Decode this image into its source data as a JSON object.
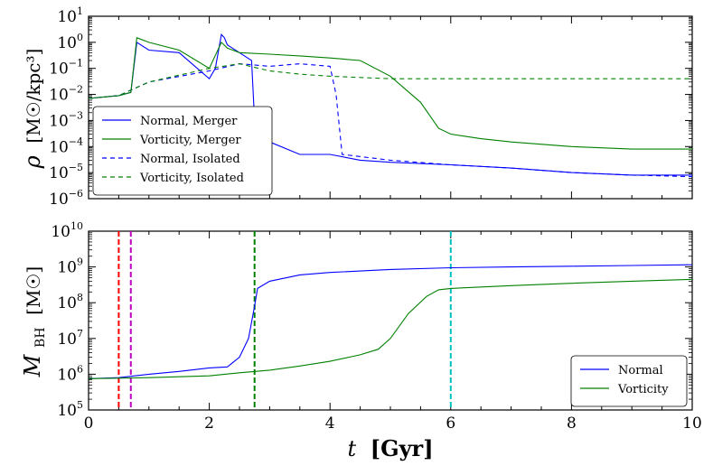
{
  "chart_data": [
    {
      "type": "line",
      "panel": "top",
      "ylabel_symbol": "ρ",
      "ylabel_units": "[M☉/kpc³]",
      "yscale": "log",
      "ylim": [
        1e-06,
        10
      ],
      "xlim": [
        0,
        10
      ],
      "y_ticks": [
        {
          "base": "10",
          "exp": "1",
          "value": 10
        },
        {
          "base": "10",
          "exp": "0",
          "value": 1
        },
        {
          "base": "10",
          "exp": "−1",
          "value": 0.1
        },
        {
          "base": "10",
          "exp": "−2",
          "value": 0.01
        },
        {
          "base": "10",
          "exp": "−3",
          "value": 0.001
        },
        {
          "base": "10",
          "exp": "−4",
          "value": 0.0001
        },
        {
          "base": "10",
          "exp": "−5",
          "value": 1e-05
        },
        {
          "base": "10",
          "exp": "−6",
          "value": 1e-06
        }
      ],
      "series": [
        {
          "name": "Normal, Merger",
          "color": "#0000ff",
          "style": "solid",
          "x": [
            0,
            0.5,
            0.7,
            0.8,
            1.0,
            1.5,
            2.0,
            2.1,
            2.2,
            2.25,
            2.3,
            2.5,
            2.7,
            2.75,
            2.8,
            3.0,
            3.5,
            4.0,
            4.5,
            5.0,
            6.0,
            7.0,
            8.0,
            9.0,
            10.0
          ],
          "y": [
            0.007,
            0.009,
            0.012,
            1.0,
            0.5,
            0.4,
            0.04,
            0.1,
            2.0,
            1.5,
            0.8,
            0.4,
            0.2,
            0.001,
            0.0002,
            0.00015,
            5e-05,
            5e-05,
            3e-05,
            2.5e-05,
            2e-05,
            1.5e-05,
            1e-05,
            8e-06,
            8e-06
          ]
        },
        {
          "name": "Vorticity, Merger",
          "color": "#008000",
          "style": "solid",
          "x": [
            0,
            0.5,
            0.7,
            0.8,
            1.0,
            1.5,
            2.0,
            2.2,
            2.3,
            2.5,
            3.0,
            3.5,
            4.0,
            4.5,
            5.0,
            5.5,
            5.8,
            6.0,
            6.5,
            7.0,
            8.0,
            9.0,
            10.0
          ],
          "y": [
            0.007,
            0.009,
            0.012,
            1.5,
            1.0,
            0.5,
            0.1,
            1.0,
            0.6,
            0.4,
            0.35,
            0.3,
            0.25,
            0.2,
            0.05,
            0.005,
            0.0005,
            0.0003,
            0.0002,
            0.00015,
            0.0001,
            8e-05,
            8e-05
          ]
        },
        {
          "name": "Normal, Isolated",
          "color": "#0000ff",
          "style": "dashed",
          "x": [
            0,
            0.5,
            1.0,
            2.0,
            2.5,
            3.0,
            3.5,
            4.0,
            4.1,
            4.2,
            5.0,
            6.0,
            7.0,
            8.0,
            9.0,
            10.0
          ],
          "y": [
            0.007,
            0.009,
            0.03,
            0.08,
            0.15,
            0.12,
            0.15,
            0.12,
            0.01,
            5e-05,
            3e-05,
            2e-05,
            1.5e-05,
            1e-05,
            8e-06,
            7e-06
          ]
        },
        {
          "name": "Vorticity, Isolated",
          "color": "#008000",
          "style": "dashed",
          "x": [
            0,
            0.5,
            1.0,
            2.0,
            2.5,
            3.0,
            3.5,
            4.0,
            5.0,
            6.0,
            7.0,
            8.0,
            9.0,
            10.0
          ],
          "y": [
            0.007,
            0.009,
            0.03,
            0.1,
            0.15,
            0.08,
            0.06,
            0.05,
            0.04,
            0.04,
            0.04,
            0.04,
            0.04,
            0.04
          ]
        }
      ],
      "legend_location": "lower-left"
    },
    {
      "type": "line",
      "panel": "bottom",
      "ylabel_symbol": "M",
      "ylabel_subscript": "BH",
      "ylabel_units": "[M☉]",
      "xlabel_symbol": "t",
      "xlabel_units": "[Gyr]",
      "yscale": "log",
      "ylim": [
        100000,
        10000000000
      ],
      "xlim": [
        0,
        10
      ],
      "x_ticks": [
        "0",
        "2",
        "4",
        "6",
        "8",
        "10"
      ],
      "y_ticks": [
        {
          "base": "10",
          "exp": "10",
          "value": 10000000000
        },
        {
          "base": "10",
          "exp": "9",
          "value": 1000000000
        },
        {
          "base": "10",
          "exp": "8",
          "value": 100000000
        },
        {
          "base": "10",
          "exp": "7",
          "value": 10000000
        },
        {
          "base": "10",
          "exp": "6",
          "value": 1000000
        },
        {
          "base": "10",
          "exp": "5",
          "value": 100000
        }
      ],
      "series": [
        {
          "name": "Normal",
          "color": "#0000ff",
          "style": "solid",
          "x": [
            0,
            0.5,
            1.0,
            1.5,
            2.0,
            2.3,
            2.5,
            2.65,
            2.75,
            2.8,
            3.0,
            3.5,
            4.0,
            5.0,
            6.0,
            7.0,
            8.0,
            9.0,
            10.0
          ],
          "y": [
            750000,
            800000,
            1000000,
            1200000,
            1500000,
            1600000,
            3000000,
            10000000,
            80000000,
            250000000,
            400000000,
            600000000,
            700000000,
            850000000,
            950000000,
            1000000000,
            1050000000,
            1100000000,
            1150000000
          ]
        },
        {
          "name": "Vorticity",
          "color": "#008000",
          "style": "solid",
          "x": [
            0,
            1.0,
            2.0,
            2.5,
            3.0,
            3.5,
            4.0,
            4.5,
            4.8,
            5.0,
            5.3,
            5.6,
            5.8,
            6.0,
            7.0,
            8.0,
            9.0,
            10.0
          ],
          "y": [
            750000,
            800000,
            900000,
            1100000,
            1300000,
            1700000,
            2300000,
            3500000,
            5000000,
            10000000,
            50000000,
            150000000,
            230000000,
            250000000,
            300000000,
            350000000,
            400000000,
            450000000
          ]
        }
      ],
      "vertical_lines": [
        {
          "x": 0.5,
          "color": "#ff0000"
        },
        {
          "x": 0.7,
          "color": "#c000c0"
        },
        {
          "x": 2.75,
          "color": "#008000"
        },
        {
          "x": 6.0,
          "color": "#00bfbf"
        }
      ],
      "legend_location": "lower-right"
    }
  ]
}
